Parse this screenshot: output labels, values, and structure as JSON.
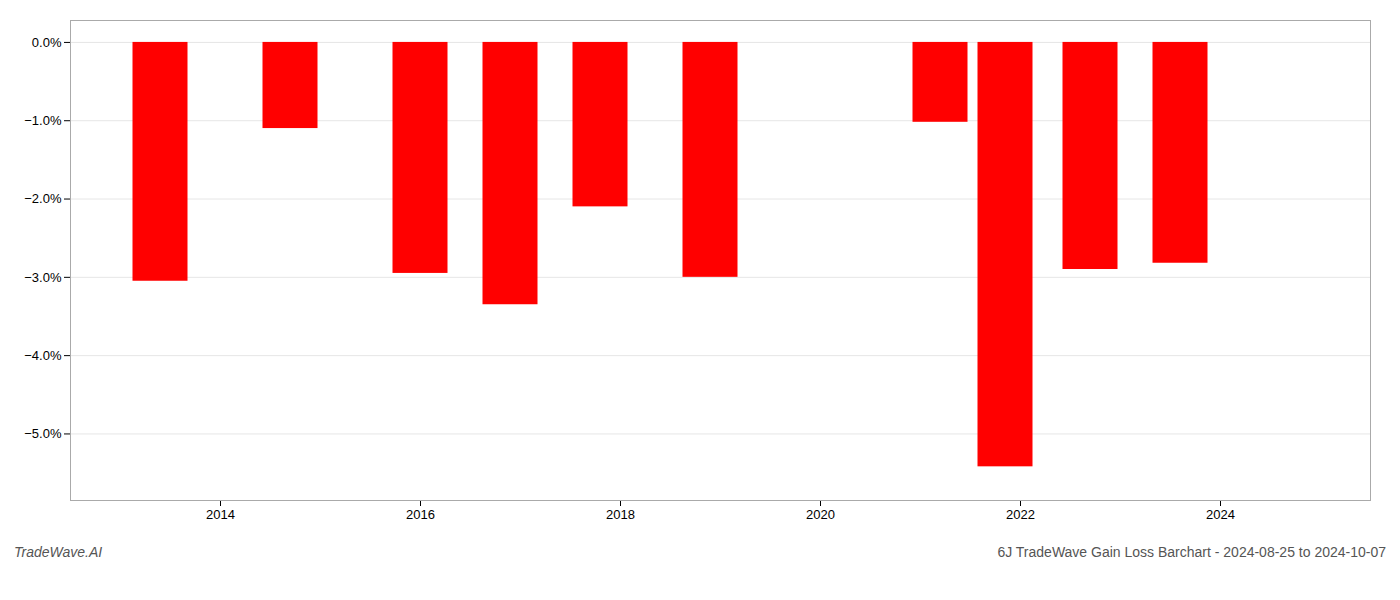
{
  "chart_data": {
    "type": "bar",
    "title": "6J TradeWave Gain Loss Barchart - 2024-08-25 to 2024-10-07",
    "annotations": [
      "TradeWave.AI"
    ],
    "x": [
      2013.4,
      2014.7,
      2016.0,
      2016.9,
      2017.8,
      2018.9,
      2021.2,
      2021.85,
      2022.7,
      2023.6
    ],
    "values": [
      -3.05,
      -1.1,
      -2.95,
      -3.35,
      -2.1,
      -3.0,
      -1.02,
      -5.42,
      -2.9,
      -2.82
    ],
    "color": "#ff0000",
    "xlim": [
      2012.5,
      2025.5
    ],
    "xticks": [
      2014,
      2016,
      2018,
      2020,
      2022,
      2024
    ],
    "ylim": [
      -5.85,
      0.28
    ],
    "yticks": [
      {
        "value": 0,
        "label": "0.0%"
      },
      {
        "value": -1,
        "label": "−1.0%"
      },
      {
        "value": -2,
        "label": "−2.0%"
      },
      {
        "value": -3,
        "label": "−3.0%"
      },
      {
        "value": -4,
        "label": "−4.0%"
      },
      {
        "value": -5,
        "label": "−5.0%"
      }
    ],
    "grid": true
  }
}
